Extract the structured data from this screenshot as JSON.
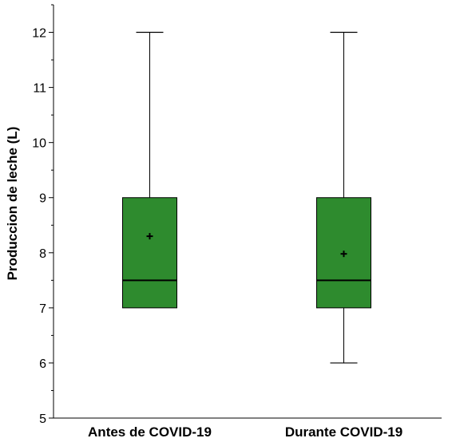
{
  "chart_data": {
    "type": "boxplot",
    "title": "",
    "xlabel": "",
    "ylabel": "Produccion de leche (L)",
    "ylim": [
      5,
      12.5
    ],
    "yticks": [
      5,
      6,
      7,
      8,
      9,
      10,
      11,
      12
    ],
    "minor_ticks": true,
    "grid": false,
    "categories": [
      "Antes de COVID-19",
      "Durante COVID-19"
    ],
    "boxes": [
      {
        "category": "Antes de COVID-19",
        "min": 7,
        "q1": 7,
        "median": 7.5,
        "q3": 9,
        "max": 12,
        "mean": 8.3
      },
      {
        "category": "Durante COVID-19",
        "min": 6,
        "q1": 7,
        "median": 7.5,
        "q3": 9,
        "max": 12,
        "mean": 7.98
      }
    ],
    "box_color": "#2e8b2e",
    "line_color": "#000000"
  }
}
